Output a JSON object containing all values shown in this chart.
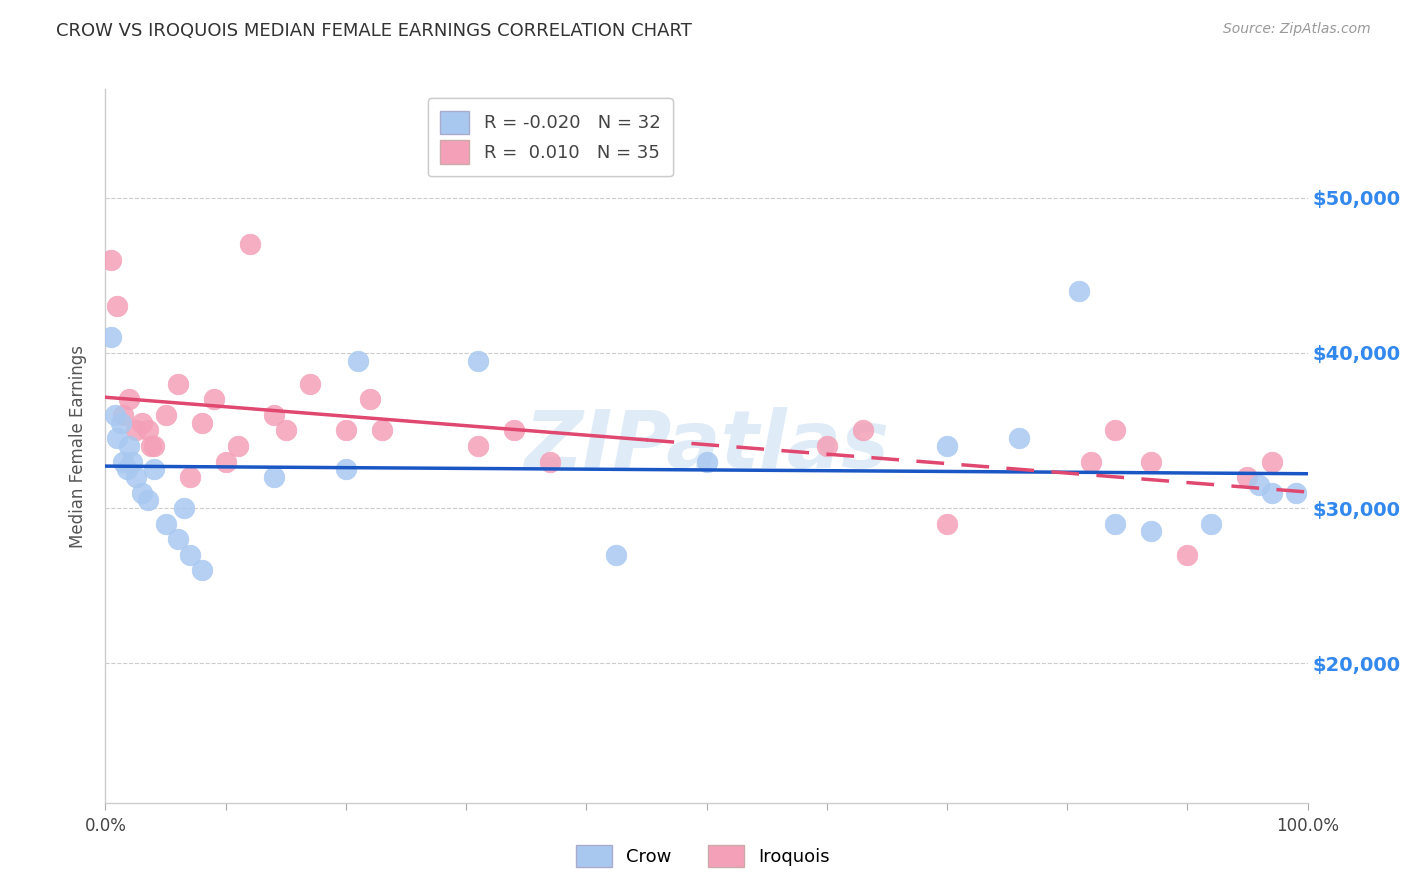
{
  "title": "CROW VS IROQUOIS MEDIAN FEMALE EARNINGS CORRELATION CHART",
  "source": "Source: ZipAtlas.com",
  "ylabel": "Median Female Earnings",
  "xlim": [
    0.0,
    1.0
  ],
  "ylim": [
    11000,
    57000
  ],
  "yticks": [
    20000,
    30000,
    40000,
    50000
  ],
  "ytick_labels": [
    "$20,000",
    "$30,000",
    "$40,000",
    "$50,000"
  ],
  "xticks": [
    0.0,
    0.1,
    0.2,
    0.3,
    0.4,
    0.5,
    0.6,
    0.7,
    0.8,
    0.9,
    1.0
  ],
  "xtick_labels": [
    "0.0%",
    "",
    "",
    "",
    "",
    "",
    "",
    "",
    "",
    "",
    "100.0%"
  ],
  "crow_R": -0.02,
  "crow_N": 32,
  "iroquois_R": 0.01,
  "iroquois_N": 35,
  "crow_color": "#a8c8f0",
  "iroquois_color": "#f4a0b8",
  "crow_line_color": "#1a56c4",
  "iroquois_line_color": "#e04870",
  "background_color": "#ffffff",
  "grid_color": "#cccccc",
  "axis_label_color": "#3388ee",
  "watermark": "ZIPatlas",
  "crow_x": [
    0.005,
    0.008,
    0.01,
    0.013,
    0.015,
    0.018,
    0.02,
    0.022,
    0.025,
    0.03,
    0.035,
    0.04,
    0.05,
    0.06,
    0.065,
    0.07,
    0.08,
    0.14,
    0.2,
    0.21,
    0.31,
    0.425,
    0.5,
    0.7,
    0.76,
    0.81,
    0.84,
    0.87,
    0.92,
    0.96,
    0.97,
    0.99
  ],
  "crow_y": [
    41000,
    36000,
    34500,
    35500,
    33000,
    32500,
    34000,
    33000,
    32000,
    31000,
    30500,
    32500,
    29000,
    28000,
    30000,
    27000,
    26000,
    32000,
    32500,
    39500,
    39500,
    27000,
    33000,
    34000,
    34500,
    44000,
    29000,
    28500,
    29000,
    31500,
    31000,
    31000
  ],
  "iroquois_x": [
    0.005,
    0.01,
    0.015,
    0.02,
    0.025,
    0.03,
    0.035,
    0.038,
    0.04,
    0.05,
    0.06,
    0.07,
    0.08,
    0.09,
    0.1,
    0.11,
    0.12,
    0.14,
    0.15,
    0.17,
    0.2,
    0.22,
    0.23,
    0.31,
    0.34,
    0.37,
    0.6,
    0.63,
    0.7,
    0.82,
    0.84,
    0.87,
    0.9,
    0.95,
    0.97
  ],
  "iroquois_y": [
    46000,
    43000,
    36000,
    37000,
    35000,
    35500,
    35000,
    34000,
    34000,
    36000,
    38000,
    32000,
    35500,
    37000,
    33000,
    34000,
    47000,
    36000,
    35000,
    38000,
    35000,
    37000,
    35000,
    34000,
    35000,
    33000,
    34000,
    35000,
    29000,
    33000,
    35000,
    33000,
    27000,
    32000,
    33000
  ]
}
